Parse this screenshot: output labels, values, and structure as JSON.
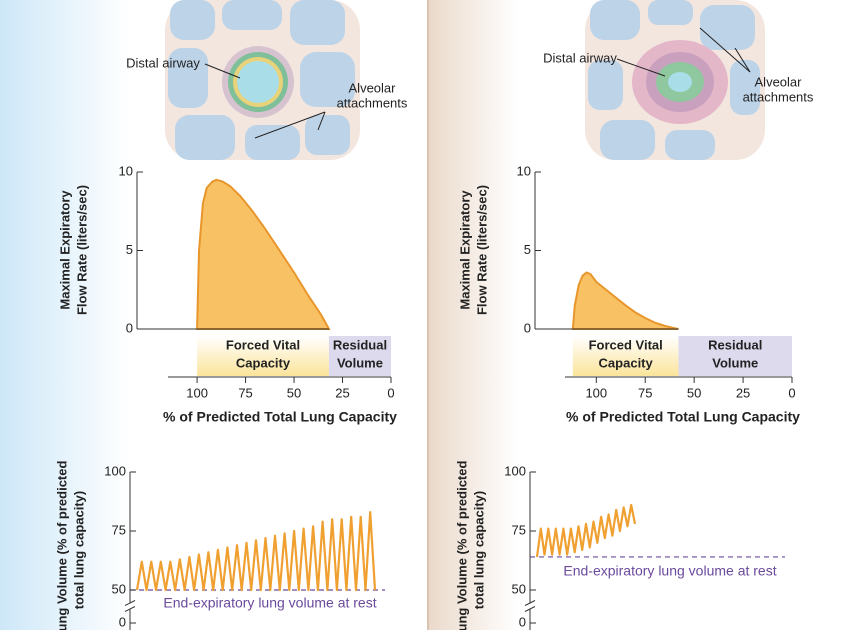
{
  "chart_data": [
    {
      "type": "area",
      "annotations": [
        [
          "Distal airway"
        ],
        [
          "Alveolar",
          "attachments"
        ]
      ],
      "ylabel": [
        "Maximal Expiratory",
        "Flow Rate (liters/sec)"
      ],
      "xlabel": "% of Predicted Total Lung Capacity",
      "x": [
        100,
        99,
        97,
        95,
        92,
        90,
        87,
        83,
        78,
        72,
        65,
        58,
        50,
        42,
        36,
        32
      ],
      "values": [
        0,
        5,
        8,
        9,
        9.4,
        9.5,
        9.4,
        9.1,
        8.5,
        7.6,
        6.4,
        5.1,
        3.6,
        2,
        0.9,
        0
      ],
      "color": "#f8c164",
      "bands": [
        {
          "label": [
            "Forced Vital",
            "Capacity"
          ],
          "start": 100,
          "end": 32,
          "color": "#fbeab0"
        },
        {
          "label": [
            "Residual",
            "Volume"
          ],
          "start": 32,
          "end": 0,
          "color": "#dedaee"
        }
      ],
      "xlim": [
        115,
        0
      ],
      "xticks": [
        100,
        75,
        50,
        25,
        0
      ],
      "ylim": [
        0,
        10
      ],
      "yticks": [
        0,
        5,
        10
      ]
    },
    {
      "type": "area",
      "annotations": [
        [
          "Distal airway"
        ],
        [
          "Alveolar",
          "attachments"
        ]
      ],
      "ylabel": [
        "Maximal Expiratory",
        "Flow Rate (liters/sec)"
      ],
      "xlabel": "% of Predicted Total Lung Capacity",
      "x": [
        112,
        111,
        109,
        107,
        105,
        103,
        100,
        95,
        90,
        85,
        80,
        75,
        70,
        65,
        60,
        58
      ],
      "values": [
        0,
        1.5,
        2.8,
        3.4,
        3.6,
        3.5,
        3.0,
        2.5,
        2.0,
        1.5,
        1.05,
        0.7,
        0.4,
        0.2,
        0.05,
        0
      ],
      "color": "#f8c164",
      "bands": [
        {
          "label": [
            "Forced Vital",
            "Capacity"
          ],
          "start": 112,
          "end": 58,
          "color": "#fbeab0"
        },
        {
          "label": [
            "Residual",
            "Volume"
          ],
          "start": 58,
          "end": 0,
          "color": "#dedaee"
        }
      ],
      "xlim": [
        116,
        0
      ],
      "xticks": [
        100,
        75,
        50,
        25,
        0
      ],
      "ylim": [
        0,
        10
      ],
      "yticks": [
        0,
        5,
        10
      ]
    },
    {
      "type": "line",
      "ylabel": [
        "Lung Volume (% of predicted",
        "total lung capacity)"
      ],
      "values": [
        50,
        62,
        50,
        62,
        50,
        62,
        50,
        62,
        50,
        63,
        50,
        64,
        50,
        65,
        50,
        66,
        50,
        67,
        50,
        68,
        50,
        69,
        50,
        70,
        50,
        71,
        50,
        72,
        50,
        73,
        50,
        74,
        50,
        75,
        50,
        76,
        50,
        77,
        50,
        79,
        50,
        80,
        50,
        80,
        50,
        81,
        50,
        81,
        50,
        83,
        50
      ],
      "color": "#f0a030",
      "reference": {
        "value": 50,
        "label": "End-expiratory lung volume at rest",
        "color": "#6a4a9c"
      },
      "ylim": [
        0,
        100
      ],
      "axis_break": [
        0,
        50
      ],
      "yticks": [
        0,
        50,
        75,
        100
      ]
    },
    {
      "type": "line",
      "ylabel": [
        "Lung Volume (% of predicted",
        "total lung capacity)"
      ],
      "values": [
        64,
        76,
        65,
        76,
        65,
        76,
        65,
        76,
        65,
        76,
        66,
        77,
        67,
        78,
        68,
        79,
        70,
        81,
        72,
        82,
        73,
        84,
        75,
        85,
        77,
        86,
        78
      ],
      "color": "#f0a030",
      "reference": {
        "value": 64,
        "label": "End-expiratory lung volume at rest",
        "color": "#6a4a9c"
      },
      "ylim": [
        0,
        100
      ],
      "axis_break": [
        0,
        50
      ],
      "yticks": [
        0,
        50,
        75,
        100
      ]
    }
  ]
}
